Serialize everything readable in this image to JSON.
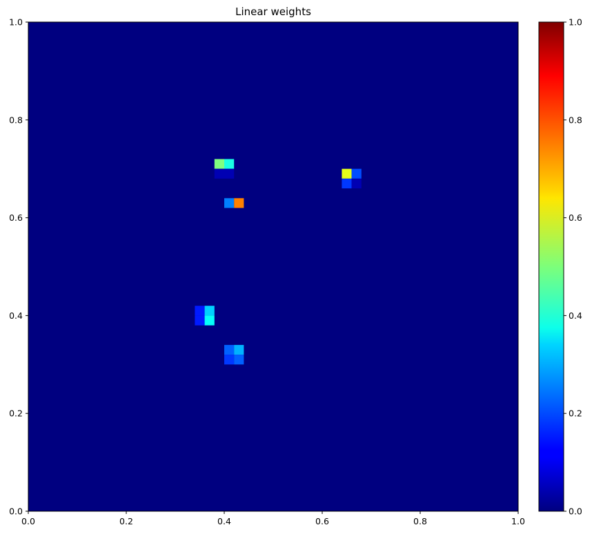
{
  "chart_data": {
    "type": "heatmap",
    "title": "Linear weights",
    "xlabel": "",
    "ylabel": "",
    "xlim": [
      0.0,
      1.0
    ],
    "ylim": [
      0.0,
      1.0
    ],
    "grid": false,
    "grid_resolution": 50,
    "colormap": "jet",
    "background_value": 0.0,
    "x_ticks": [
      0.0,
      0.2,
      0.4,
      0.6,
      0.8,
      1.0
    ],
    "y_ticks": [
      0.0,
      0.2,
      0.4,
      0.6,
      0.8,
      1.0
    ],
    "x_tick_labels": [
      "0.0",
      "0.2",
      "0.4",
      "0.6",
      "0.8",
      "1.0"
    ],
    "y_tick_labels": [
      "0.0",
      "0.2",
      "0.4",
      "0.6",
      "0.8",
      "1.0"
    ],
    "colorbar": {
      "range": [
        0.0,
        1.0
      ],
      "ticks": [
        0.0,
        0.2,
        0.4,
        0.6,
        0.8,
        1.0
      ],
      "tick_labels": [
        "0.0",
        "0.2",
        "0.4",
        "0.6",
        "0.8",
        "1.0"
      ]
    },
    "cells": [
      {
        "x": 0.39,
        "y": 0.71,
        "value": 0.5
      },
      {
        "x": 0.41,
        "y": 0.71,
        "value": 0.4
      },
      {
        "x": 0.39,
        "y": 0.69,
        "value": 0.05
      },
      {
        "x": 0.41,
        "y": 0.69,
        "value": 0.05
      },
      {
        "x": 0.41,
        "y": 0.63,
        "value": 0.25
      },
      {
        "x": 0.43,
        "y": 0.63,
        "value": 0.75
      },
      {
        "x": 0.65,
        "y": 0.69,
        "value": 0.6
      },
      {
        "x": 0.67,
        "y": 0.69,
        "value": 0.2
      },
      {
        "x": 0.65,
        "y": 0.67,
        "value": 0.18
      },
      {
        "x": 0.67,
        "y": 0.67,
        "value": 0.05
      },
      {
        "x": 0.35,
        "y": 0.41,
        "value": 0.15
      },
      {
        "x": 0.37,
        "y": 0.41,
        "value": 0.33
      },
      {
        "x": 0.35,
        "y": 0.39,
        "value": 0.15
      },
      {
        "x": 0.37,
        "y": 0.39,
        "value": 0.38
      },
      {
        "x": 0.41,
        "y": 0.33,
        "value": 0.22
      },
      {
        "x": 0.43,
        "y": 0.33,
        "value": 0.3
      },
      {
        "x": 0.41,
        "y": 0.31,
        "value": 0.18
      },
      {
        "x": 0.43,
        "y": 0.31,
        "value": 0.22
      }
    ]
  }
}
